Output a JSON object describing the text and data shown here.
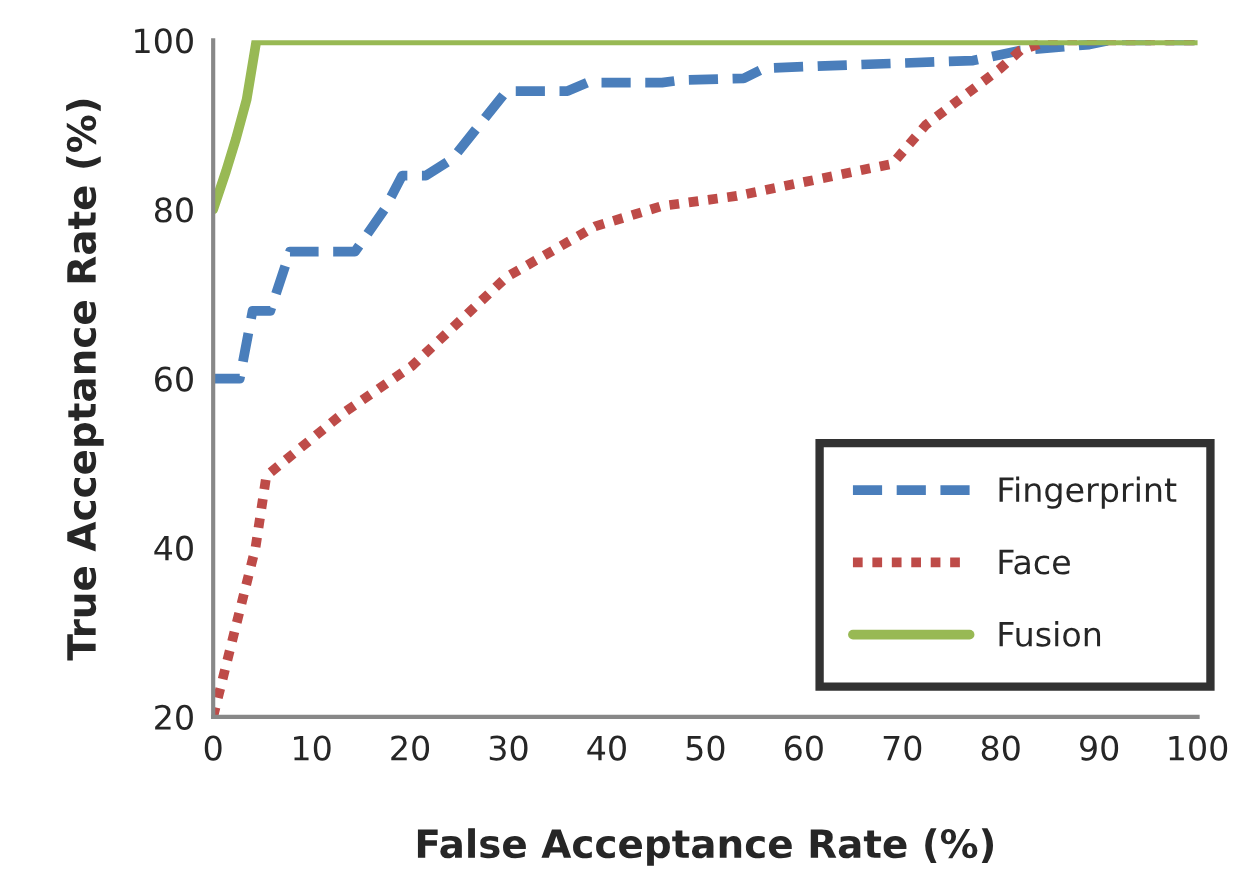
{
  "chart_data": {
    "type": "line",
    "xlabel": "False Acceptance Rate (%)",
    "ylabel": "True Acceptance Rate (%)",
    "xlim": [
      0,
      100
    ],
    "ylim": [
      20,
      100
    ],
    "xticks": [
      0,
      10,
      20,
      30,
      40,
      50,
      60,
      70,
      80,
      90,
      100
    ],
    "yticks": [
      20,
      40,
      60,
      80,
      100
    ],
    "grid": false,
    "legend": "bottom right",
    "series": [
      {
        "name": "Fingerprint",
        "color": "#4a7ebb",
        "line_style": "dashed",
        "x": [
          0,
          2.7,
          4,
          5.8,
          7.8,
          14.4,
          17.4,
          19.2,
          21.6,
          24.3,
          29.8,
          36,
          38,
          45.6,
          47.6,
          53.9,
          56,
          64.9,
          77.2,
          82,
          89,
          91,
          100
        ],
        "values": [
          60,
          60,
          68,
          68,
          75,
          75,
          80,
          84,
          84,
          86,
          94,
          94,
          95,
          95,
          95.3,
          95.5,
          96.7,
          97.1,
          97.6,
          98.8,
          99.5,
          100,
          100
        ]
      },
      {
        "name": "Face",
        "color": "#be4b48",
        "line_style": "dotted",
        "x": [
          0,
          4.3,
          5.4,
          13.3,
          20.2,
          29.8,
          38.8,
          45.6,
          53.2,
          69,
          72.4,
          80,
          82,
          85,
          100
        ],
        "values": [
          20,
          40,
          48.5,
          56,
          61.5,
          72,
          78,
          80.4,
          81.6,
          85.4,
          90,
          96.7,
          98.8,
          100,
          100
        ]
      },
      {
        "name": "Fusion",
        "color": "#98b954",
        "line_style": "solid",
        "x": [
          0,
          1.3,
          2.3,
          3.4,
          4.4,
          100
        ],
        "values": [
          80,
          84.5,
          88.3,
          93,
          100,
          100
        ]
      }
    ]
  }
}
